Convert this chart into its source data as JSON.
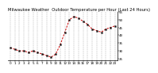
{
  "title": "Milwaukee Weather  Outdoor Temperature per Hour (Last 24 Hours)",
  "hours": [
    0,
    1,
    2,
    3,
    4,
    5,
    6,
    7,
    8,
    9,
    10,
    11,
    12,
    13,
    14,
    15,
    16,
    17,
    18,
    19,
    20,
    21,
    22,
    23
  ],
  "temps": [
    32,
    31,
    30,
    30,
    29,
    30,
    29,
    28,
    27,
    26,
    28,
    34,
    42,
    50,
    52,
    51,
    49,
    47,
    44,
    43,
    42,
    44,
    45,
    46
  ],
  "line_color": "#cc0000",
  "marker_color": "#111111",
  "bg_color": "#ffffff",
  "grid_color": "#999999",
  "title_color": "#000000",
  "ylim": [
    24,
    55
  ],
  "yticks": [
    25,
    30,
    35,
    40,
    45,
    50,
    55
  ],
  "ytick_labels": [
    "25",
    "30",
    "35",
    "40",
    "45",
    "50",
    "55"
  ],
  "title_fontsize": 3.8,
  "tick_fontsize": 3.0
}
